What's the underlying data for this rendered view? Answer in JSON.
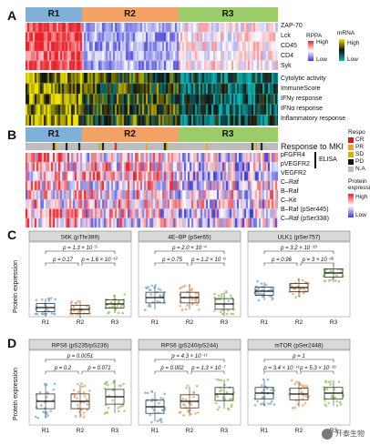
{
  "panels": {
    "A": {
      "letter": "A",
      "groups": [
        "R1",
        "R2",
        "R3"
      ],
      "group_colors": [
        "#7fb1d8",
        "#f3a265",
        "#9acd6a"
      ],
      "rows_top": [
        "ZAP-70",
        "Lck",
        "CD45",
        "CD4",
        "Syk"
      ],
      "rows_bottom": [
        "Cytolytic activity",
        "ImmuneScore",
        "IFNγ response",
        "IFNα response",
        "Inflammatory response"
      ],
      "legend_rppa": {
        "title": "RPPA",
        "high": "High",
        "low": "Low"
      },
      "legend_mrna": {
        "title": "mRNA",
        "high": "High",
        "low": "Low"
      }
    },
    "B": {
      "letter": "B",
      "groups": [
        "R1",
        "R2",
        "R3"
      ],
      "response_label": "Response to MKI",
      "rows": [
        "pFGFR4",
        "pVEGFR2",
        "VEGFR2",
        "C–Raf",
        "B–Raf",
        "C–Kit",
        "B–Raf (pSer445)",
        "C–Raf (pSer338)"
      ],
      "elisa_label": "ELISA",
      "response_legend": {
        "title": "Respo",
        "items": [
          "CR",
          "PR",
          "SD",
          "PD",
          "N.A"
        ]
      },
      "response_colors": [
        "#d7191c",
        "#f4a028",
        "#c8b400",
        "#111111",
        "#bdbdbd"
      ],
      "protein_legend": {
        "title": "Protein expressi",
        "high": "High",
        "low": "Low"
      }
    },
    "C": {
      "letter": "C",
      "ylabel": "Protein expression",
      "subplots": [
        {
          "title": "S6K (pThr389)",
          "p_top": "p = 1.3 × 10⁻⁵",
          "p_left": "p = 0.17",
          "p_right": "p = 1.6 × 10⁻¹²"
        },
        {
          "title": "4E–BP (pSer65)",
          "p_top": "p = 2.0 × 10⁻⁴",
          "p_left": "p = 0.75",
          "p_right": "p = 1.2 × 10⁻⁶"
        },
        {
          "title": "ULK1 (pSer757)",
          "p_top": "p = 3.2 × 10⁻¹⁸",
          "p_left": "p = 0.96",
          "p_right": "p = 3 × 10⁻²⁶"
        }
      ],
      "xticks": [
        "R1",
        "R2",
        "R3"
      ]
    },
    "D": {
      "letter": "D",
      "ylabel": "Protein expression",
      "subplots": [
        {
          "title": "RPS6 (pS235/pS236)",
          "p_top": "p = 0.0051",
          "p_left": "p = 0.2",
          "p_right": "p = 0.071"
        },
        {
          "title": "RPS6 (pS240/pS244)",
          "p_top": "p = 4.3 × 10⁻¹¹",
          "p_left": "p = 0.002",
          "p_right": "p = 1.3 × 10⁻⁷"
        },
        {
          "title": "mTOR (pSer2448)",
          "p_top": "p = 1",
          "p_left": "p = 3.4 × 10⁻¹¹",
          "p_right": "p = 5.3 × 10⁻¹⁶"
        }
      ],
      "xticks": [
        "R1",
        "R2",
        "R3"
      ]
    }
  },
  "watermark": {
    "text": "开泰生物"
  },
  "colors": {
    "R1": "#7fb1d8",
    "R2": "#f3a265",
    "R3": "#9acd6a",
    "heat_high": "#e8212a",
    "heat_low": "#3b3bd6",
    "mrna_high": "#f0e400",
    "mrna_low": "#0ab3b3"
  }
}
